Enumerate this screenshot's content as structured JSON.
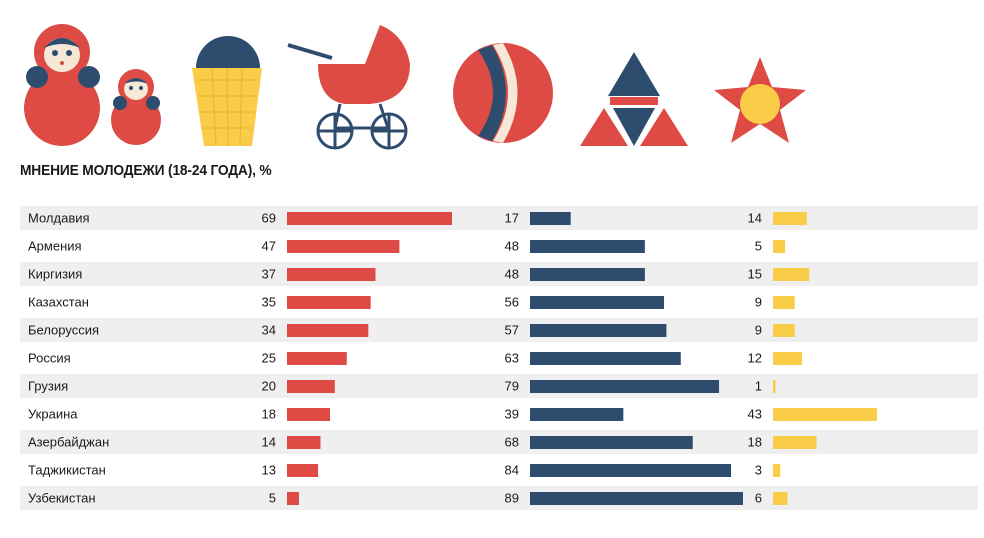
{
  "chart_data": {
    "type": "bar",
    "title": "МНЕНИЕ МОЛОДЕЖИ (18-24 ГОДА), %",
    "categories": [
      "Молдавия",
      "Армения",
      "Киргизия",
      "Казахстан",
      "Белоруссия",
      "Россия",
      "Грузия",
      "Украина",
      "Азербайджан",
      "Таджикистан",
      "Узбекистан"
    ],
    "series": [
      {
        "color": "#dd4b44",
        "values": [
          69,
          47,
          37,
          35,
          34,
          25,
          20,
          18,
          14,
          13,
          5
        ]
      },
      {
        "color": "#2e4d6e",
        "values": [
          17,
          48,
          48,
          56,
          57,
          63,
          79,
          39,
          68,
          84,
          89
        ]
      },
      {
        "color": "#f9cd47",
        "values": [
          14,
          5,
          15,
          9,
          9,
          12,
          1,
          43,
          18,
          3,
          6
        ]
      }
    ]
  },
  "colors": {
    "row_stripe": "#efefef",
    "red": "#dd4b44",
    "navy": "#2e4d6e",
    "yellow": "#f9cd47"
  },
  "icons": [
    "matryoshka-dolls-icon",
    "ice-cream-cone-icon",
    "baby-stroller-icon",
    "ball-icon",
    "triangle-emblem-icon",
    "star-emblem-icon"
  ]
}
